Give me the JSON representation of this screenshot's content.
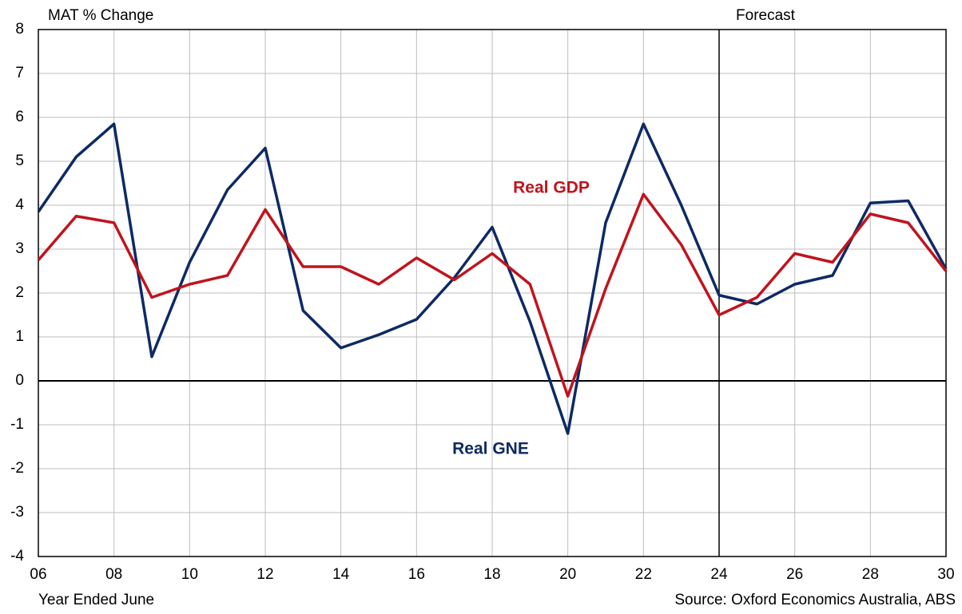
{
  "chart_data": {
    "type": "line",
    "y_axis_label": "MAT % Change",
    "x_axis_label": "Year Ended June",
    "source": "Source: Oxford Economics Australia, ABS",
    "forecast_label": "Forecast",
    "forecast_x": 24,
    "x": [
      6,
      7,
      8,
      9,
      10,
      11,
      12,
      13,
      14,
      15,
      16,
      17,
      18,
      19,
      20,
      21,
      22,
      23,
      24,
      25,
      26,
      27,
      28,
      29,
      30
    ],
    "series": [
      {
        "name": "Real GNE",
        "color": "#0d2a63",
        "values": [
          3.85,
          5.1,
          5.85,
          0.55,
          2.7,
          4.35,
          5.3,
          1.6,
          0.75,
          1.05,
          1.4,
          2.35,
          3.5,
          1.35,
          -1.2,
          3.6,
          5.85,
          4.0,
          1.95,
          1.75,
          2.2,
          2.4,
          4.05,
          4.1,
          2.55
        ]
      },
      {
        "name": "Real GDP",
        "color": "#c0141d",
        "values": [
          2.75,
          3.75,
          3.6,
          1.9,
          2.2,
          2.4,
          3.9,
          2.6,
          2.6,
          2.2,
          2.8,
          2.3,
          2.9,
          2.2,
          -0.35,
          2.1,
          4.25,
          3.1,
          1.5,
          1.9,
          2.9,
          2.7,
          3.8,
          3.6,
          2.5
        ]
      }
    ],
    "xlim": [
      6,
      30
    ],
    "xticks": [
      {
        "value": 6,
        "label": "06"
      },
      {
        "value": 8,
        "label": "08"
      },
      10,
      12,
      14,
      16,
      18,
      20,
      22,
      24,
      26,
      28,
      30
    ],
    "ylim": [
      -4,
      8
    ],
    "yticks": [
      -4,
      -3,
      -2,
      -1,
      0,
      1,
      2,
      3,
      4,
      5,
      6,
      7,
      8
    ],
    "grid": true
  }
}
